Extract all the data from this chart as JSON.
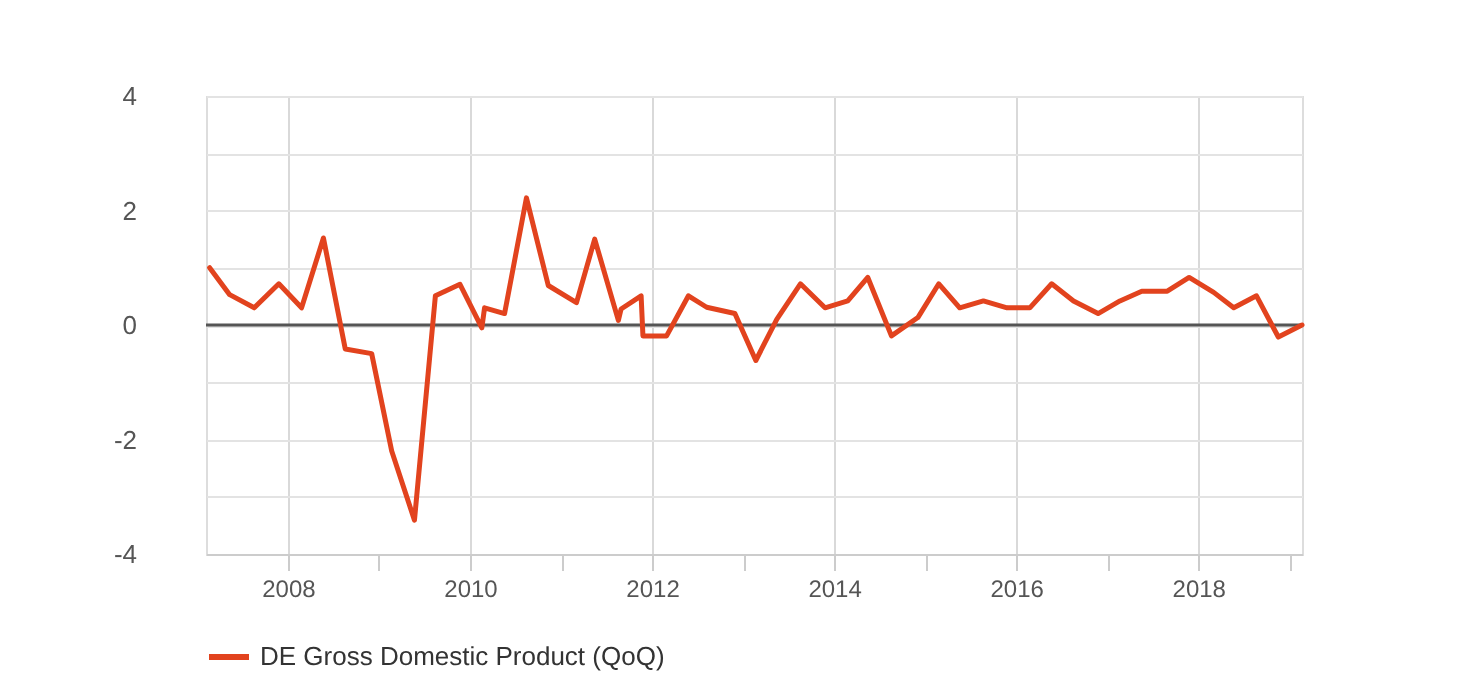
{
  "chart_data": {
    "type": "line",
    "x": [
      2007.14,
      2007.36,
      2007.63,
      2007.9,
      2008.15,
      2008.39,
      2008.63,
      2008.92,
      2009.14,
      2009.39,
      2009.62,
      2009.89,
      2010.13,
      2010.16,
      2010.38,
      2010.62,
      2010.86,
      2011.17,
      2011.37,
      2011.63,
      2011.66,
      2011.88,
      2011.9,
      2012.16,
      2012.4,
      2012.6,
      2012.91,
      2013.14,
      2013.37,
      2013.63,
      2013.9,
      2014.15,
      2014.37,
      2014.63,
      2014.92,
      2015.15,
      2015.38,
      2015.64,
      2015.9,
      2016.15,
      2016.39,
      2016.63,
      2016.9,
      2017.14,
      2017.38,
      2017.66,
      2017.9,
      2018.17,
      2018.39,
      2018.64,
      2018.88,
      2019.14
    ],
    "series": [
      {
        "name": "DE Gross Domestic Product (QoQ)",
        "color": "#e2431e",
        "values": [
          1.0,
          0.53,
          0.3,
          0.72,
          0.3,
          1.52,
          -0.42,
          -0.5,
          -2.2,
          -3.41,
          0.51,
          0.71,
          -0.05,
          0.3,
          0.2,
          2.22,
          0.69,
          0.39,
          1.5,
          0.08,
          0.28,
          0.51,
          -0.19,
          -0.19,
          0.51,
          0.31,
          0.2,
          -0.62,
          0.1,
          0.72,
          0.3,
          0.42,
          0.83,
          -0.19,
          0.13,
          0.72,
          0.3,
          0.42,
          0.3,
          0.3,
          0.72,
          0.42,
          0.2,
          0.42,
          0.59,
          0.59,
          0.83,
          0.57,
          0.3,
          0.51,
          -0.21,
          0.0
        ]
      }
    ],
    "xlim": [
      2007.1,
      2019.14
    ],
    "ylim": [
      -4,
      4
    ],
    "xticks": [
      2008,
      {
        "value": 2009,
        "label": null
      },
      2010,
      {
        "value": 2011,
        "label": null
      },
      2012,
      {
        "value": 2013,
        "label": null
      },
      2014,
      {
        "value": 2015,
        "label": null
      },
      2016,
      {
        "value": 2017,
        "label": null
      },
      2018,
      {
        "value": 2019,
        "label": null
      }
    ],
    "yticks": [
      -4,
      {
        "value": -3,
        "label": null
      },
      -2,
      {
        "value": -1,
        "label": null
      },
      0,
      {
        "value": 1,
        "label": null
      },
      2,
      {
        "value": 3,
        "label": null
      },
      4
    ],
    "ref_lines": [
      {
        "axis": "y",
        "value": 0,
        "color": "#555555"
      }
    ],
    "grid": true,
    "legend": "bottom left",
    "marker": "none",
    "line_style": "solid"
  }
}
